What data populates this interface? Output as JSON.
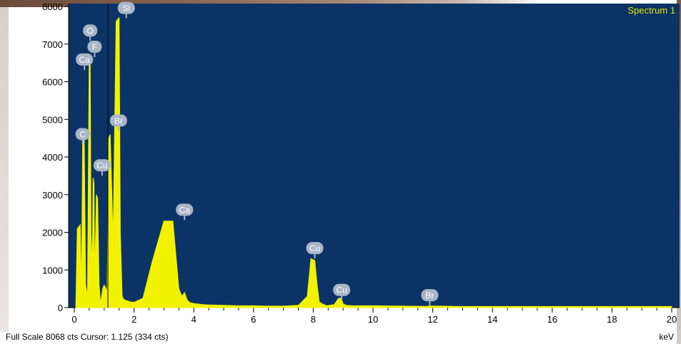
{
  "chart_data": {
    "type": "line",
    "title": "Spectrum 1",
    "xlabel": "keV",
    "ylabel": "",
    "xlim": [
      0,
      20
    ],
    "ylim": [
      0,
      8000
    ],
    "xticks": [
      0,
      2,
      4,
      6,
      8,
      10,
      12,
      14,
      16,
      18,
      20
    ],
    "yticks": [
      0,
      1000,
      2000,
      3000,
      4000,
      5000,
      6000,
      7000,
      8000
    ],
    "colors": {
      "plot_background": "#0b3366",
      "spectrum": "#f2f200",
      "title": "#e8e800",
      "peak_marker": "#a9b4c6"
    },
    "series": [
      {
        "x": [
          0.05,
          0.1,
          0.2,
          0.24,
          0.28,
          0.33,
          0.38,
          0.44,
          0.5,
          0.53,
          0.56,
          0.6,
          0.63,
          0.66,
          0.68,
          0.74,
          0.78,
          0.83,
          0.88,
          0.95,
          1.0,
          1.06,
          1.1,
          1.15,
          1.2,
          1.3,
          1.4,
          1.5,
          1.54,
          1.6,
          1.65,
          1.7,
          1.76,
          1.81,
          1.85,
          1.9,
          2.0,
          2.3,
          2.6,
          3.0,
          3.3,
          3.5,
          3.6,
          3.69,
          3.78,
          3.87,
          3.95,
          4.0,
          4.1,
          4.2,
          4.3,
          4.5,
          5.0,
          5.5,
          6.0,
          6.5,
          7.0,
          7.5,
          7.8,
          7.92,
          8.05,
          8.13,
          8.2,
          8.3,
          8.45,
          8.7,
          8.85,
          8.93,
          9.0,
          9.1,
          9.3,
          10.0,
          11.0,
          11.8,
          11.9,
          12.0,
          12.3,
          13.0,
          14.0,
          16.0,
          18.0,
          20.0
        ],
        "y": [
          0,
          2100,
          2200,
          300,
          4500,
          4600,
          600,
          300,
          6700,
          6600,
          2000,
          1000,
          3450,
          3300,
          700,
          3000,
          2900,
          600,
          100,
          500,
          600,
          500,
          400,
          4500,
          4600,
          1800,
          7600,
          7700,
          2000,
          300,
          220,
          200,
          180,
          170,
          160,
          150,
          140,
          250,
          1200,
          2300,
          2300,
          500,
          300,
          400,
          200,
          130,
          120,
          110,
          100,
          90,
          80,
          70,
          60,
          50,
          50,
          40,
          40,
          60,
          300,
          1300,
          1250,
          600,
          150,
          100,
          50,
          80,
          250,
          250,
          100,
          60,
          50,
          50,
          40,
          35,
          45,
          40,
          40,
          30,
          30,
          30,
          30,
          30
        ],
        "peaks": [
          {
            "label": "C",
            "x": 0.28,
            "y": 4600
          },
          {
            "label": "O",
            "x": 0.53,
            "y": 7350
          },
          {
            "label": "F",
            "x": 0.68,
            "y": 6920
          },
          {
            "label": "Ca",
            "x": 0.34,
            "y": 6580
          },
          {
            "label": "Cu",
            "x": 0.93,
            "y": 3770
          },
          {
            "label": "Br",
            "x": 1.48,
            "y": 4960
          },
          {
            "label": "Si",
            "x": 1.74,
            "y": 7950
          },
          {
            "label": "Ca",
            "x": 3.69,
            "y": 2590
          },
          {
            "label": "Cu",
            "x": 8.05,
            "y": 1570
          },
          {
            "label": "Cu",
            "x": 8.95,
            "y": 460
          },
          {
            "label": "Br",
            "x": 11.9,
            "y": 320
          }
        ],
        "cursor_x": 1.125
      }
    ]
  },
  "footer": {
    "status": "Full Scale 8068 cts Cursor: 1.125  (334 cts)",
    "unit": "keV"
  }
}
